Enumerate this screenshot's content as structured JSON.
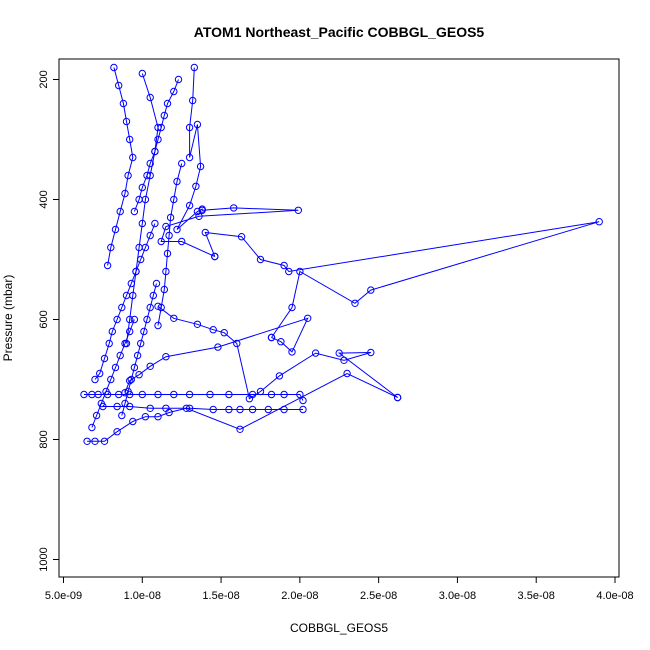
{
  "chart_data": {
    "type": "scatter",
    "title": "ATOM1 Northeast_Pacific COBBGL_GEOS5",
    "xlabel": "COBBGL_GEOS5",
    "ylabel": "Pressure (mbar)",
    "xlim": [
      5e-09,
      4e-08
    ],
    "ylim": [
      1020,
      170
    ],
    "y_reversed": true,
    "grid": false,
    "color": "#0000ff",
    "marker": "open-circle",
    "connected": true,
    "x_ticks": [
      {
        "value": 5e-09,
        "label": "5.0e-09"
      },
      {
        "value": 1e-08,
        "label": "1.0e-08"
      },
      {
        "value": 1.5e-08,
        "label": "1.5e-08"
      },
      {
        "value": 2e-08,
        "label": "2.0e-08"
      },
      {
        "value": 2.5e-08,
        "label": "2.5e-08"
      },
      {
        "value": 3e-08,
        "label": "3.0e-08"
      },
      {
        "value": 3.5e-08,
        "label": "3.5e-08"
      },
      {
        "value": 4e-08,
        "label": "4.0e-08"
      }
    ],
    "y_ticks": [
      {
        "value": 200,
        "label": "200"
      },
      {
        "value": 400,
        "label": "400"
      },
      {
        "value": 600,
        "label": "600"
      },
      {
        "value": 800,
        "label": "800"
      },
      {
        "value": 1000,
        "label": "1000"
      }
    ],
    "series": [
      {
        "x": [
          1.33e-08,
          1.32e-08,
          1.3e-08,
          1.3e-08,
          1.35e-08,
          1.37e-08,
          1.34e-08,
          1.3e-08,
          1.22e-08,
          1.35e-08,
          1.38e-08,
          1.38e-08,
          1.58e-08,
          1.99e-08,
          1.36e-08,
          1.15e-08,
          1.12e-08,
          1.25e-08,
          1.46e-08
        ],
        "y": [
          180,
          235,
          280,
          330,
          275,
          345,
          378,
          410,
          450,
          420,
          416,
          418,
          414,
          418,
          428,
          445,
          470,
          470,
          495
        ]
      },
      {
        "x": [
          1.46e-08,
          1.4e-08,
          1.63e-08,
          1.75e-08,
          1.9e-08,
          1.93e-08,
          3.9e-08,
          2.45e-08,
          2.35e-08,
          2e-08,
          1.95e-08,
          1.82e-08
        ],
        "y": [
          495,
          455,
          462,
          500,
          510,
          520,
          437,
          551,
          573,
          520,
          580,
          630
        ]
      },
      {
        "x": [
          1.82e-08,
          1.88e-08,
          1.95e-08,
          2.05e-08,
          1.48e-08,
          1.15e-08,
          1.05e-08,
          9.8e-09,
          9.2e-09,
          8.9e-09
        ],
        "y": [
          630,
          637,
          654,
          598,
          646,
          662,
          678,
          692,
          702,
          722
        ]
      },
      {
        "x": [
          6.3e-09,
          6.8e-09,
          7.2e-09,
          7.8e-09,
          8.5e-09,
          9.2e-09,
          1e-08,
          1.1e-08,
          1.2e-08,
          1.3e-08,
          1.43e-08,
          1.55e-08,
          1.7e-08,
          1.82e-08,
          1.9e-08,
          2e-08,
          2.02e-08
        ],
        "y": [
          725,
          725,
          725,
          725,
          725,
          725,
          725,
          725,
          725,
          725,
          725,
          725,
          725,
          725,
          725,
          725,
          735
        ]
      },
      {
        "x": [
          2.02e-08,
          1.9e-08,
          1.8e-08,
          1.7e-08,
          1.62e-08,
          1.55e-08,
          1.45e-08,
          1.3e-08,
          1.15e-08,
          1.05e-08,
          9.2e-09,
          8.4e-09,
          7.5e-09
        ],
        "y": [
          750,
          750,
          750,
          750,
          750,
          750,
          750,
          748,
          748,
          748,
          745,
          745,
          745
        ]
      },
      {
        "x": [
          6.5e-09,
          7e-09,
          7.6e-09,
          8.4e-09,
          9.4e-09,
          1.02e-08,
          1.1e-08,
          1.17e-08,
          1.28e-08,
          1.62e-08,
          2.3e-08,
          2.62e-08
        ],
        "y": [
          803,
          803,
          803,
          787,
          770,
          762,
          762,
          755,
          748,
          783,
          690,
          730
        ]
      },
      {
        "x": [
          2.62e-08,
          2.25e-08,
          2.45e-08,
          2.28e-08,
          2.1e-08,
          1.87e-08,
          1.75e-08,
          1.68e-08,
          1.6e-08,
          1.52e-08,
          1.45e-08,
          1.35e-08,
          1.2e-08,
          1.1e-08
        ],
        "y": [
          730,
          656,
          655,
          668,
          656,
          694,
          720,
          732,
          640,
          622,
          617,
          608,
          598,
          578
        ]
      },
      {
        "x": [
          7e-09,
          7.3e-09,
          7.6e-09,
          7.9e-09,
          8.1e-09,
          8.4e-09,
          8.7e-09,
          9e-09,
          9.3e-09,
          9.6e-09,
          9.9e-09,
          1.02e-08,
          1.05e-08,
          1.08e-08
        ],
        "y": [
          700,
          690,
          665,
          640,
          620,
          600,
          580,
          560,
          540,
          520,
          500,
          480,
          460,
          440
        ]
      },
      {
        "x": [
          9.5e-09,
          9.8e-09,
          1e-08,
          1.03e-08,
          1.05e-08,
          1.08e-08,
          1.1e-08,
          1.12e-08,
          1.14e-08,
          1.16e-08,
          1.2e-08,
          1.23e-08
        ],
        "y": [
          420,
          400,
          380,
          360,
          340,
          320,
          300,
          280,
          260,
          240,
          220,
          200
        ]
      },
      {
        "x": [
          8.2e-09,
          8.5e-09,
          8.8e-09,
          9e-09,
          9.2e-09,
          9.4e-09,
          9.1e-09,
          8.9e-09,
          8.6e-09,
          8.3e-09,
          8e-09,
          7.8e-09
        ],
        "y": [
          180,
          210,
          240,
          270,
          300,
          330,
          360,
          390,
          420,
          450,
          480,
          510
        ]
      },
      {
        "x": [
          1e-08,
          1.05e-08,
          1.1e-08,
          1.08e-08,
          1.05e-08,
          1.02e-08,
          1e-08,
          9.8e-09,
          9.6e-09,
          9.4e-09,
          9.2e-09,
          9e-09
        ],
        "y": [
          190,
          230,
          280,
          320,
          360,
          400,
          440,
          480,
          520,
          560,
          600,
          640
        ]
      },
      {
        "x": [
          8.7e-09,
          8.9e-09,
          9.1e-09,
          9.3e-09,
          9.5e-09,
          9.7e-09,
          9.9e-09,
          1.01e-08,
          1.03e-08,
          1.05e-08,
          1.07e-08,
          1.09e-08
        ],
        "y": [
          760,
          740,
          720,
          700,
          680,
          660,
          640,
          620,
          600,
          580,
          560,
          540
        ]
      },
      {
        "x": [
          6.8e-09,
          7.1e-09,
          7.4e-09,
          7.7e-09,
          8e-09,
          8.3e-09,
          8.6e-09,
          8.9e-09,
          9.2e-09,
          9.5e-09
        ],
        "y": [
          780,
          760,
          740,
          720,
          700,
          680,
          660,
          640,
          620,
          600
        ]
      },
      {
        "x": [
          1.1e-08,
          1.12e-08,
          1.14e-08,
          1.15e-08,
          1.16e-08,
          1.17e-08,
          1.18e-08,
          1.2e-08,
          1.22e-08,
          1.25e-08
        ],
        "y": [
          610,
          580,
          550,
          520,
          490,
          460,
          430,
          400,
          370,
          340
        ]
      }
    ]
  }
}
